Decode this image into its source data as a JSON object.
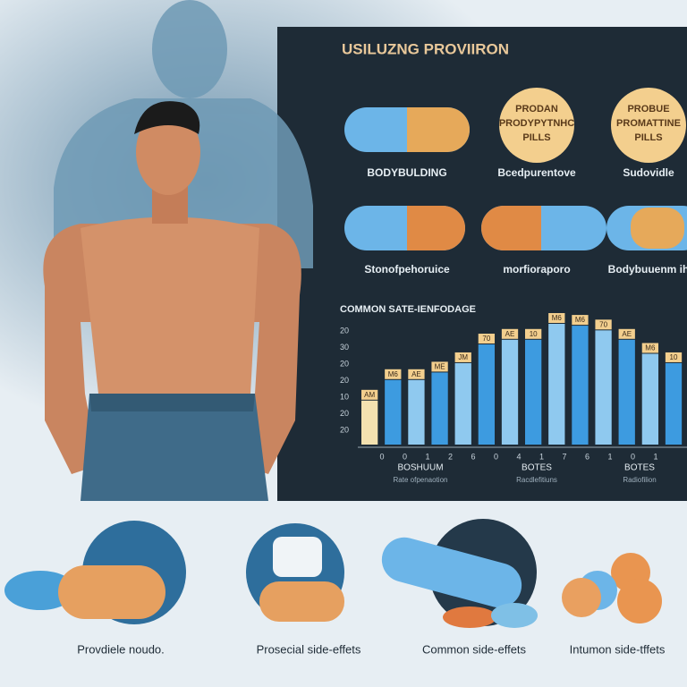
{
  "panel": {
    "title": "USILUZNG PROVIIRON"
  },
  "badges": [
    [
      "PRODAN",
      "PRODYPYTNHC",
      "PILLS"
    ],
    [
      "PROBUE",
      "PROMATTINE",
      "PILLS"
    ]
  ],
  "row1_labels": [
    "BODYBULDING",
    "Bcedpurentove",
    "Sudovidle"
  ],
  "row2_labels": [
    "Stonofpehoruice",
    "morfioraporo",
    "Bodybuuenm ih"
  ],
  "chart": {
    "title": "COMMON SATE-IENFODAGE",
    "y_labels": [
      "20",
      "30",
      "20",
      "20",
      "10",
      "20",
      "20"
    ],
    "x_labels": [
      "0",
      "0",
      "1",
      "2",
      "6",
      "0",
      "4",
      "1",
      "7",
      "6",
      "1",
      "0",
      "1"
    ],
    "values": [
      47,
      69,
      69,
      77,
      87,
      107,
      112,
      112,
      129,
      127,
      122,
      112,
      97,
      87
    ],
    "tags": [
      "AM",
      "M6",
      "AE",
      "ME",
      "JM",
      "70",
      "AE",
      "10",
      "M6",
      "M6",
      "70",
      "AE",
      "M6",
      "10"
    ],
    "groups": [
      "BOSHUUM",
      "BOTES",
      "BOTES"
    ],
    "group_notes": [
      "Rate ofpenaotion",
      "Racdlefitiuns",
      "Radiofilion"
    ]
  },
  "captions": [
    "Provdiele noudo.",
    "Prosecial side-effets",
    "Common side-effets",
    "Intumon side-tffets"
  ]
}
